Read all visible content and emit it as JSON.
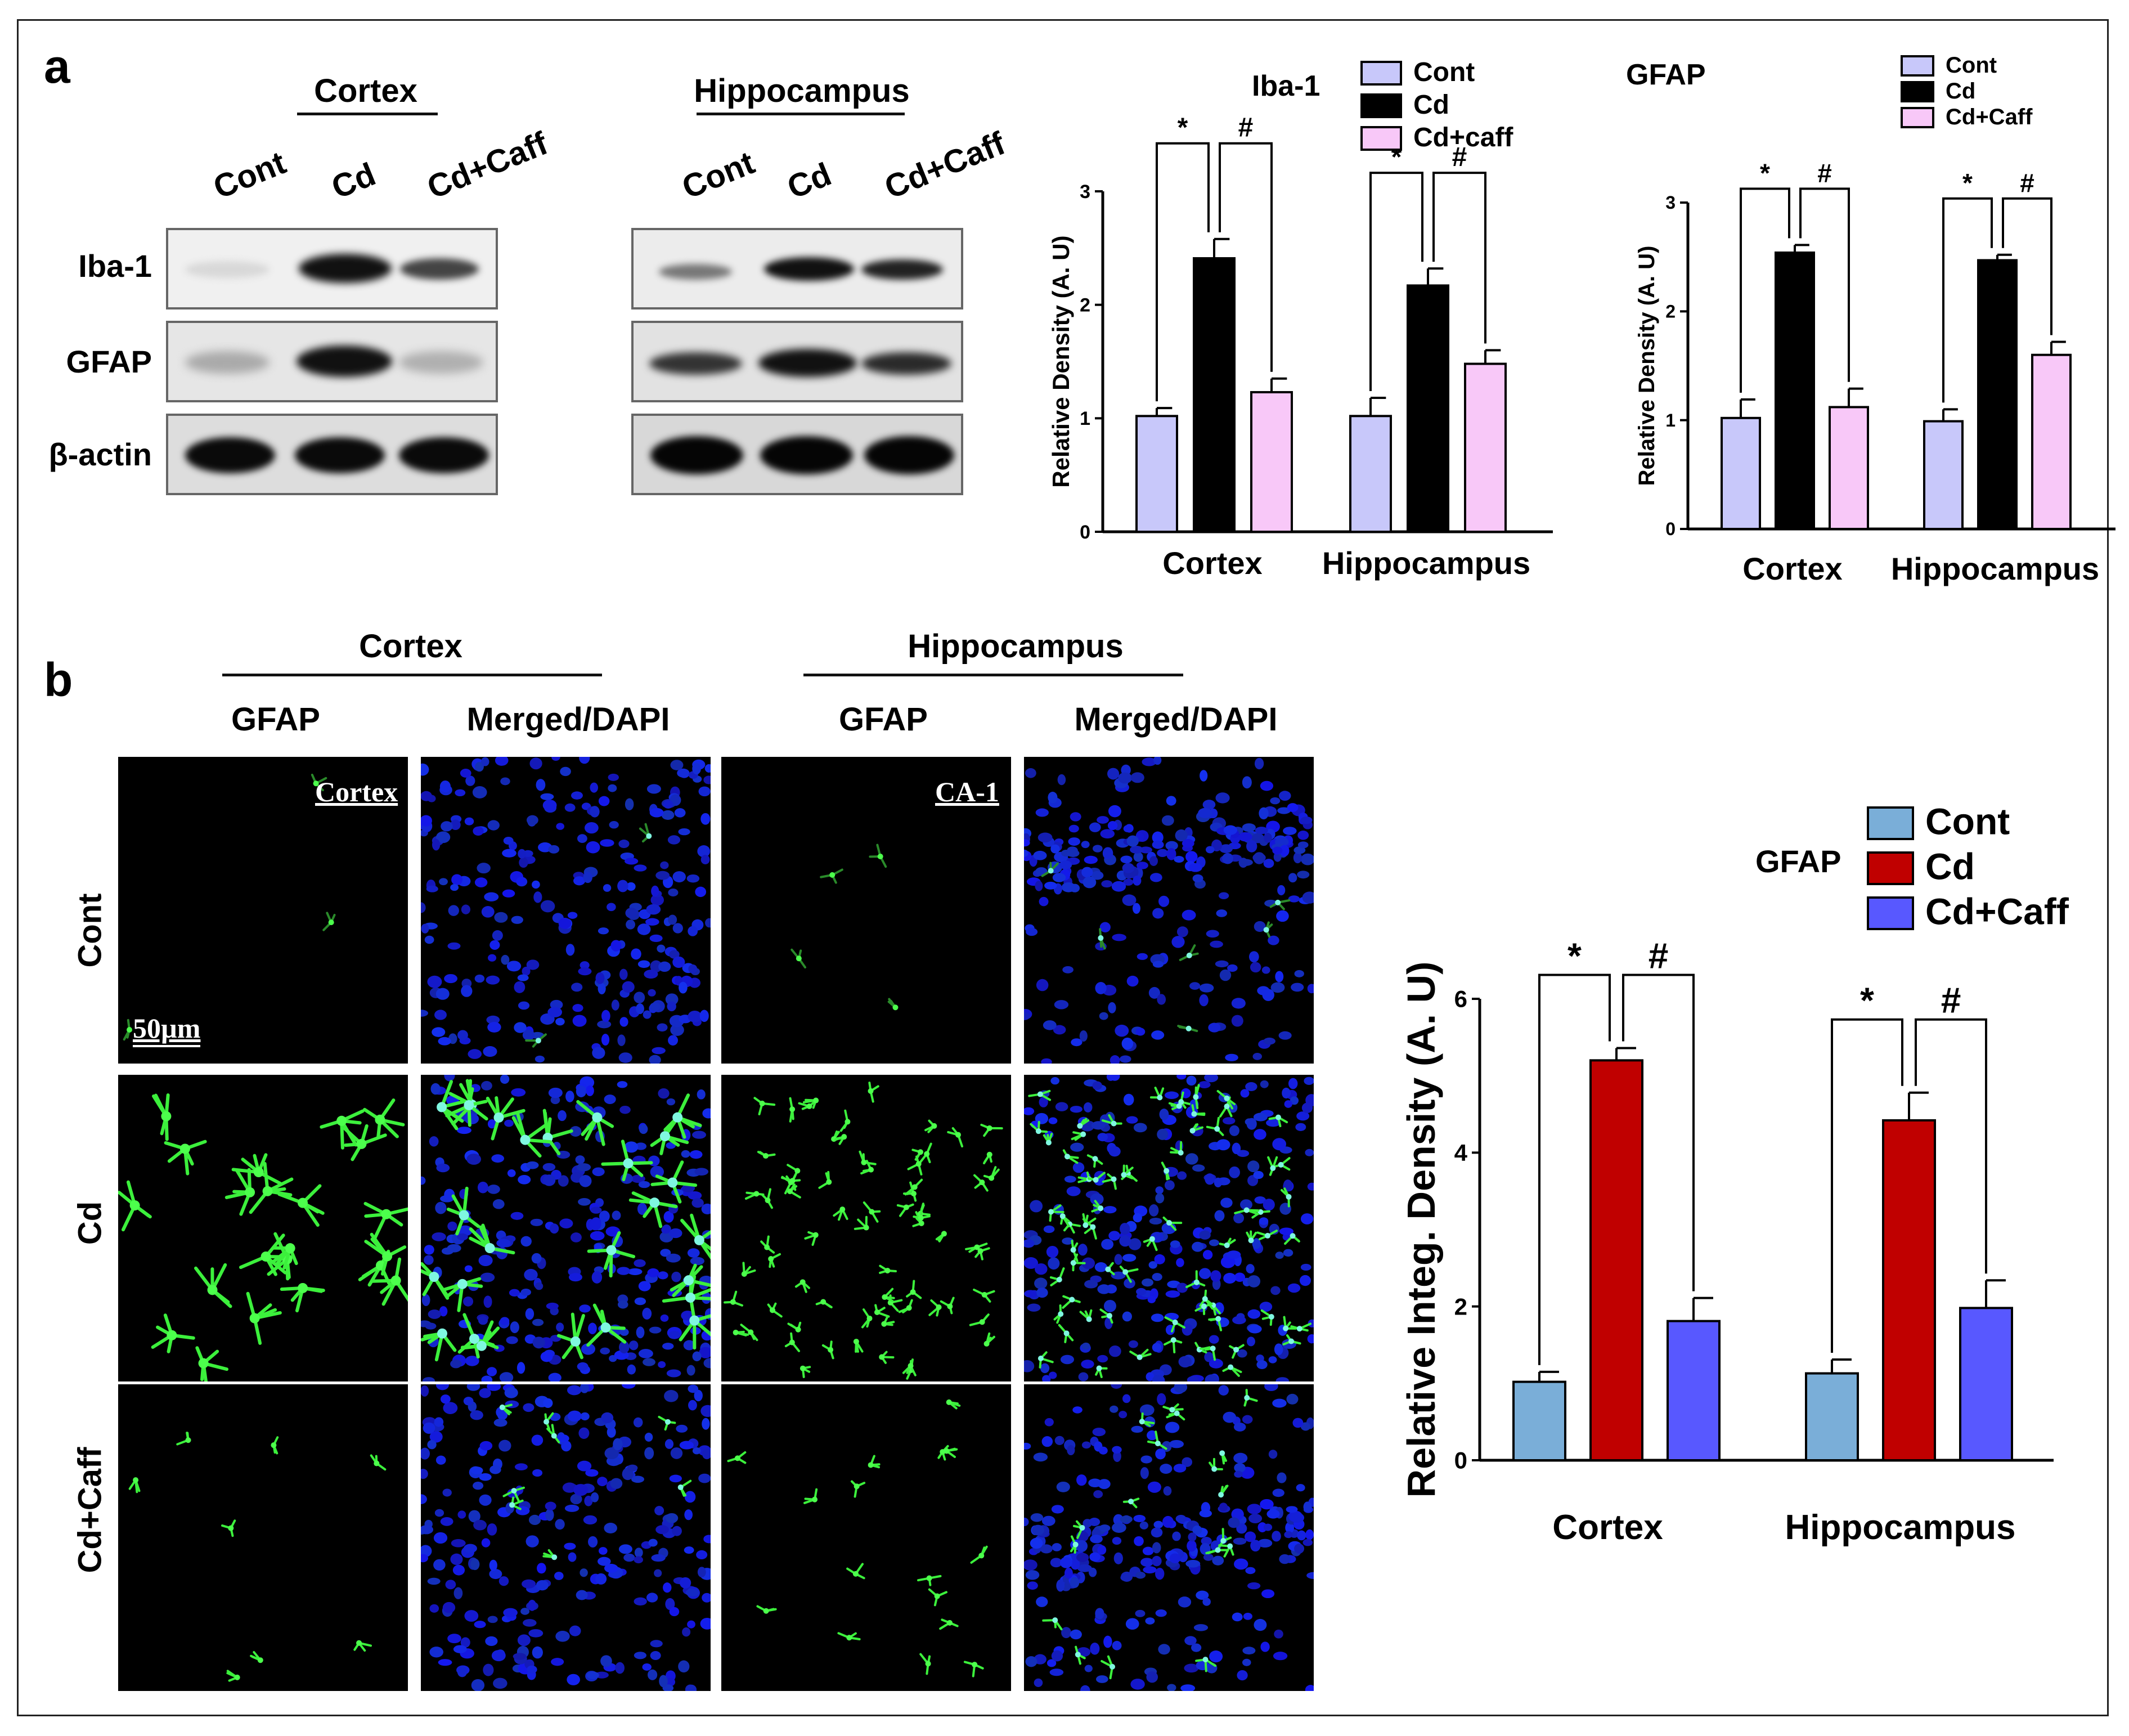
{
  "panel_a": {
    "letter": "a",
    "cortex_header": "Cortex",
    "hippocampus_header": "Hippocampus",
    "lanes": [
      "Cont",
      "Cd",
      "Cd+Caff"
    ],
    "rows": [
      "Iba-1",
      "GFAP",
      "β-actin"
    ]
  },
  "panel_b": {
    "letter": "b",
    "cortex_header": "Cortex",
    "hippocampus_header": "Hippocampus",
    "col_labels": [
      "GFAP",
      "Merged/DAPI",
      "GFAP",
      "Merged/DAPI"
    ],
    "row_labels": [
      "Cont",
      "Cd",
      "Cd+Caff"
    ],
    "image_labels": [
      "Cortex",
      "CA-1"
    ],
    "scale_bar": "50µm"
  },
  "chart_data": [
    {
      "type": "bar",
      "title": "Iba-1",
      "ylabel": "Relative Density (A. U)",
      "ylim": [
        0,
        3
      ],
      "yticks": [
        "0",
        "1",
        "2",
        "3"
      ],
      "categories": [
        "Cortex",
        "Hippocampus"
      ],
      "series": [
        {
          "name": "Cont",
          "color": "#c8c8fa",
          "values": [
            1.02,
            1.02
          ],
          "errors": [
            0.07,
            0.16
          ]
        },
        {
          "name": "Cd",
          "color": "#000000",
          "values": [
            2.41,
            2.17
          ],
          "errors": [
            0.17,
            0.15
          ]
        },
        {
          "name": "Cd+caff",
          "color": "#f8c8f8",
          "values": [
            1.23,
            1.48
          ],
          "errors": [
            0.12,
            0.12
          ]
        }
      ],
      "significance": [
        {
          "category": 0,
          "left": "*",
          "right": "#"
        },
        {
          "category": 1,
          "left": "*",
          "right": "#"
        }
      ],
      "legend_position": "top-right"
    },
    {
      "type": "bar",
      "title": "GFAP",
      "ylabel": "Relative Density (A. U)",
      "ylim": [
        0,
        3
      ],
      "yticks": [
        "0",
        "1",
        "2",
        "3"
      ],
      "categories": [
        "Cortex",
        "Hippocampus"
      ],
      "series": [
        {
          "name": "Cont",
          "color": "#c8c8fa",
          "values": [
            1.02,
            0.99
          ],
          "errors": [
            0.17,
            0.11
          ]
        },
        {
          "name": "Cd",
          "color": "#000000",
          "values": [
            2.54,
            2.47
          ],
          "errors": [
            0.07,
            0.05
          ]
        },
        {
          "name": "Cd+Caff",
          "color": "#f8c8f8",
          "values": [
            1.12,
            1.6
          ],
          "errors": [
            0.17,
            0.12
          ]
        }
      ],
      "significance": [
        {
          "category": 0,
          "left": "*",
          "right": "#"
        },
        {
          "category": 1,
          "left": "*",
          "right": "#"
        }
      ],
      "legend_position": "top-right"
    },
    {
      "type": "bar",
      "title": "GFAP",
      "ylabel": "Relative Integ. Density (A. U)",
      "ylim": [
        0,
        6
      ],
      "yticks": [
        "0",
        "2",
        "4",
        "6"
      ],
      "categories": [
        "Cortex",
        "Hippocampus"
      ],
      "series": [
        {
          "name": "Cont",
          "color": "#7aaed8",
          "values": [
            1.02,
            1.13
          ],
          "errors": [
            0.13,
            0.18
          ]
        },
        {
          "name": "Cd",
          "color": "#c00000",
          "values": [
            5.2,
            4.42
          ],
          "errors": [
            0.16,
            0.36
          ]
        },
        {
          "name": "Cd+Caff",
          "color": "#5858ff",
          "values": [
            1.81,
            1.98
          ],
          "errors": [
            0.3,
            0.36
          ]
        }
      ],
      "significance": [
        {
          "category": 0,
          "left": "*",
          "right": "#"
        },
        {
          "category": 1,
          "left": "*",
          "right": "#"
        }
      ],
      "legend_position": "top-right"
    }
  ]
}
